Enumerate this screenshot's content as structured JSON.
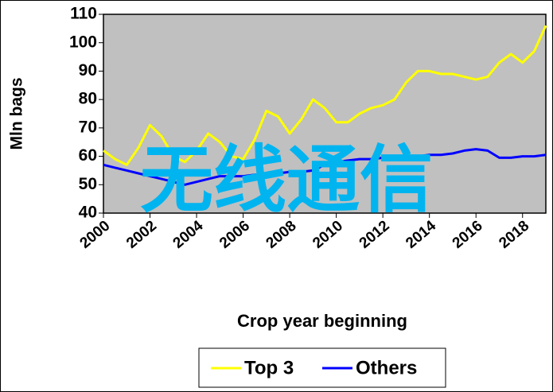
{
  "chart_data": {
    "type": "line",
    "y_label": "Mln bags",
    "x_label": "Crop year beginning",
    "watermark": "无线通信",
    "x": [
      2000,
      2000.5,
      2001,
      2001.5,
      2002,
      2002.5,
      2003,
      2003.5,
      2004,
      2004.5,
      2005,
      2005.5,
      2006,
      2006.5,
      2007,
      2007.5,
      2008,
      2008.5,
      2009,
      2009.5,
      2010,
      2010.5,
      2011,
      2011.5,
      2012,
      2012.5,
      2013,
      2013.5,
      2014,
      2014.5,
      2015,
      2015.5,
      2016,
      2016.5,
      2017,
      2017.5,
      2018,
      2018.5,
      2019
    ],
    "series": [
      {
        "name": "Top 3",
        "color": "#ffff00",
        "values": [
          62,
          59,
          57,
          63,
          71,
          67,
          60,
          58,
          62,
          68,
          65,
          60,
          59,
          66,
          76,
          74,
          68,
          73,
          80,
          77,
          72,
          72,
          75,
          77,
          78,
          80,
          86,
          90,
          90,
          89,
          89,
          88,
          87,
          88,
          93,
          96,
          93,
          97,
          106
        ]
      },
      {
        "name": "Others",
        "color": "#0000ff",
        "values": [
          57,
          56,
          55,
          54,
          53,
          52,
          51,
          50,
          51,
          52,
          53,
          53,
          53,
          53.5,
          54,
          54,
          54.5,
          54.5,
          55,
          57,
          58,
          58.5,
          59,
          59,
          59.5,
          59.5,
          60,
          60,
          60.5,
          60.5,
          61,
          62,
          62.5,
          62,
          59.5,
          59.5,
          60,
          60,
          60.5
        ]
      }
    ],
    "xlim": [
      2000,
      2019
    ],
    "xticks": [
      2000,
      2002,
      2004,
      2006,
      2008,
      2010,
      2012,
      2014,
      2016,
      2018
    ],
    "ylim": [
      40,
      110
    ],
    "yticks": [
      40,
      50,
      60,
      70,
      80,
      90,
      100,
      110
    ],
    "plot_background": "#c0c0c0"
  }
}
